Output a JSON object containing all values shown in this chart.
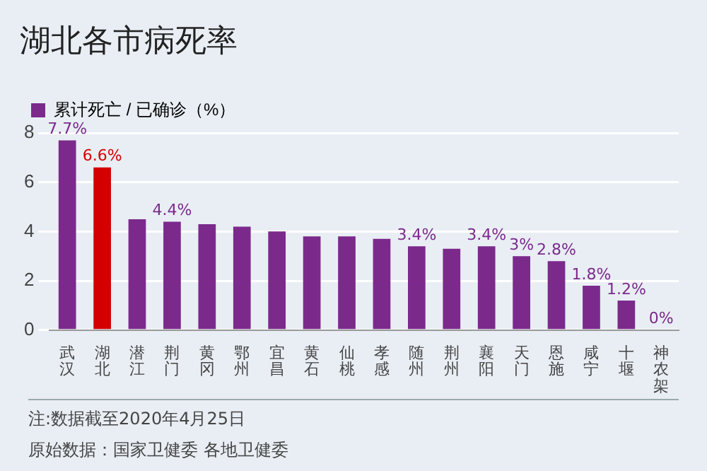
{
  "chart_data": {
    "type": "bar",
    "title": "湖北各市病死率",
    "categories": [
      "武汉",
      "湖北",
      "潜江",
      "荆门",
      "黄冈",
      "鄂州",
      "宜昌",
      "黄石",
      "仙桃",
      "孝感",
      "随州",
      "荆州",
      "襄阳",
      "天门",
      "恩施",
      "咸宁",
      "十堰",
      "神农架"
    ],
    "series": [
      {
        "name": "累计死亡 / 已确诊（%）",
        "color": "#7b2a8c",
        "colors": [
          "#7b2a8c",
          "#d40000",
          "#7b2a8c",
          "#7b2a8c",
          "#7b2a8c",
          "#7b2a8c",
          "#7b2a8c",
          "#7b2a8c",
          "#7b2a8c",
          "#7b2a8c",
          "#7b2a8c",
          "#7b2a8c",
          "#7b2a8c",
          "#7b2a8c",
          "#7b2a8c",
          "#7b2a8c",
          "#7b2a8c",
          "#7b2a8c"
        ],
        "values": [
          7.7,
          6.6,
          4.5,
          4.4,
          4.3,
          4.2,
          4.0,
          3.8,
          3.8,
          3.7,
          3.4,
          3.3,
          3.4,
          3.0,
          2.8,
          1.8,
          1.2,
          0
        ],
        "value_labels": [
          "7.7%",
          "6.6%",
          null,
          "4.4%",
          null,
          null,
          null,
          null,
          null,
          null,
          "3.4%",
          null,
          "3.4%",
          "3%",
          "2.8%",
          "1.8%",
          "1.2%",
          "0%"
        ]
      }
    ],
    "ylim": [
      0,
      8
    ],
    "yticks": [
      0,
      2,
      4,
      6,
      8
    ],
    "grid": "y",
    "legend": "top left",
    "annotations": [
      "注:数据截至2020年4月25日",
      "原始数据：国家卫健委 各地卫健委"
    ]
  }
}
